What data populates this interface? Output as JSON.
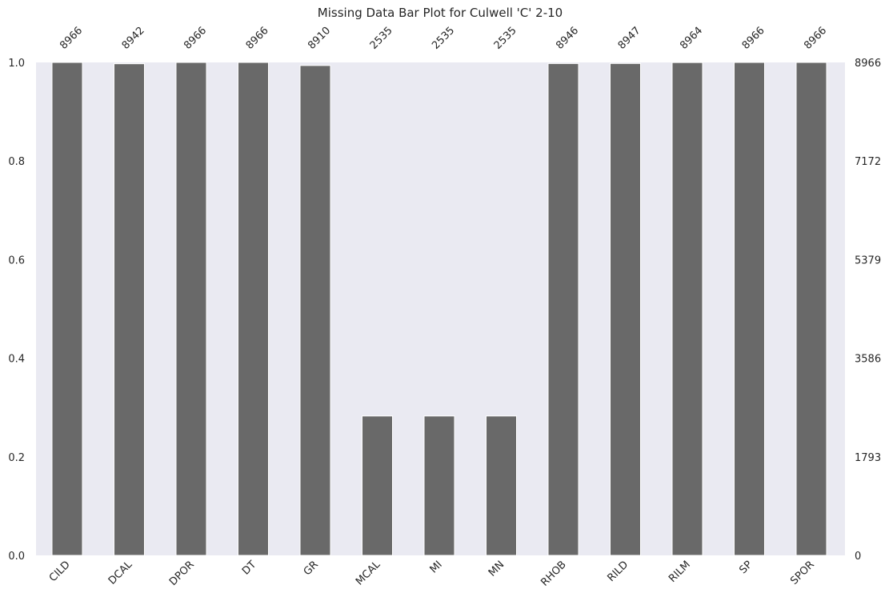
{
  "chart_data": {
    "type": "bar",
    "title": "Missing Data Bar Plot for Culwell 'C' 2-10",
    "categories": [
      "CILD",
      "DCAL",
      "DPOR",
      "DT",
      "GR",
      "MCAL",
      "MI",
      "MN",
      "RHOB",
      "RILD",
      "RILM",
      "SP",
      "SPOR"
    ],
    "counts": [
      8966,
      8942,
      8966,
      8966,
      8910,
      2535,
      2535,
      2535,
      8946,
      8947,
      8964,
      8966,
      8966
    ],
    "total": 8966,
    "ylim": [
      0,
      1
    ],
    "left_ticks": [
      "0.0",
      "0.2",
      "0.4",
      "0.6",
      "0.8",
      "1.0"
    ],
    "left_tick_values": [
      0,
      0.2,
      0.4,
      0.6,
      0.8,
      1.0
    ],
    "right_ticks": [
      "0",
      "1793",
      "3586",
      "5379",
      "7172",
      "8966"
    ],
    "grid": false,
    "colors": {
      "bar": "#696969",
      "plot_background": "#eaeaf2",
      "text": "#262626"
    }
  }
}
